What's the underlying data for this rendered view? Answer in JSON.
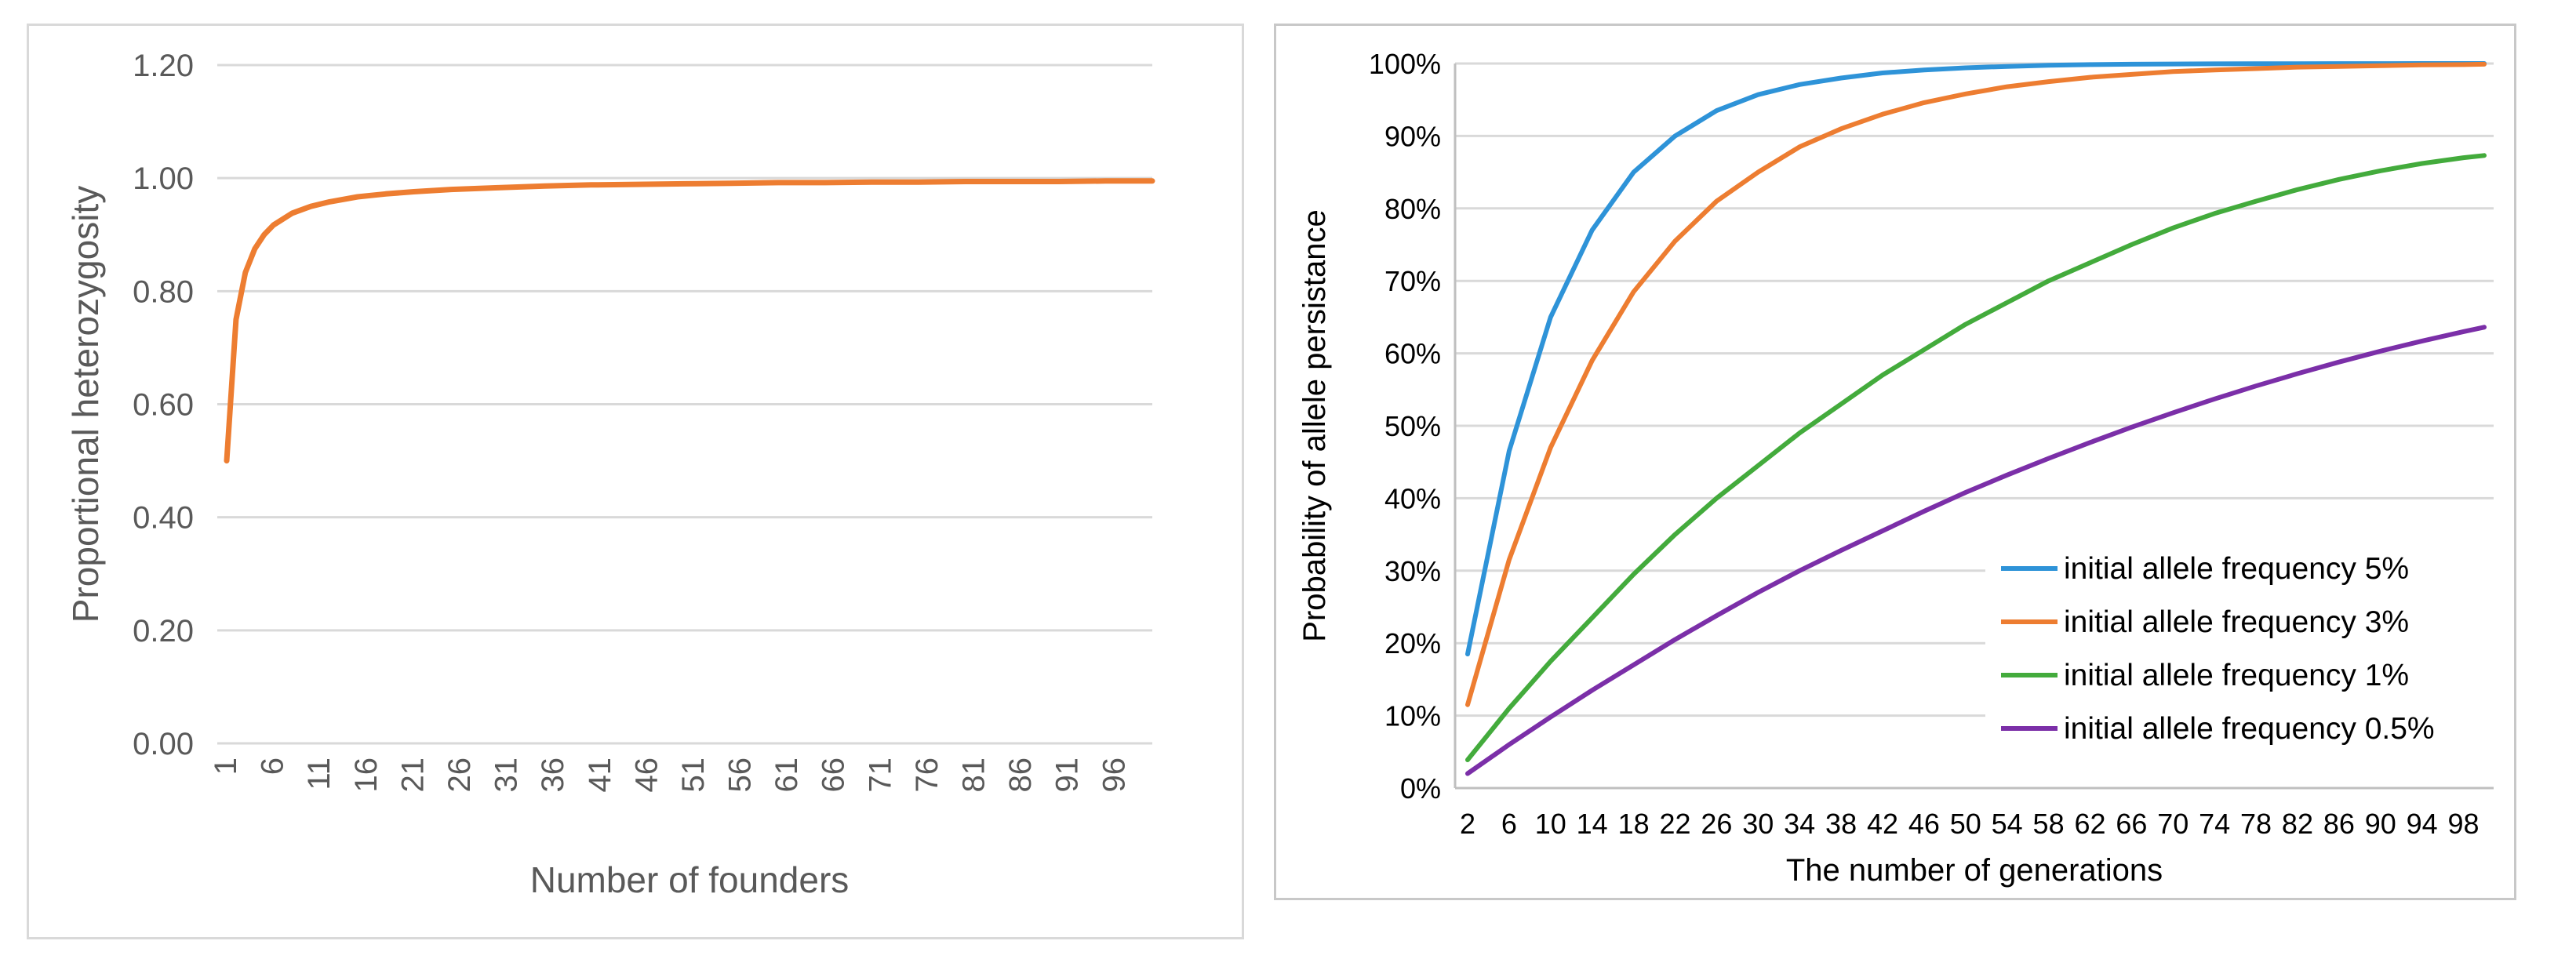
{
  "chart_data": [
    {
      "type": "line",
      "title": "",
      "xlabel": "Number of founders",
      "ylabel": "Proportional heterozygosity",
      "ylim": [
        0,
        1.2
      ],
      "yticks": [
        "0.00",
        "0.20",
        "0.40",
        "0.60",
        "0.80",
        "1.00",
        "1.20"
      ],
      "xtick_labels": [
        "1",
        "6",
        "11",
        "16",
        "21",
        "26",
        "31",
        "36",
        "41",
        "46",
        "51",
        "56",
        "61",
        "66",
        "71",
        "76",
        "81",
        "86",
        "91",
        "96"
      ],
      "x": [
        1,
        2,
        3,
        4,
        5,
        6,
        8,
        10,
        12,
        15,
        18,
        21,
        25,
        30,
        35,
        40,
        45,
        50,
        55,
        60,
        65,
        70,
        75,
        80,
        85,
        90,
        95,
        100
      ],
      "series": [
        {
          "color": "#ED7D31",
          "values": [
            0.5,
            0.75,
            0.833,
            0.875,
            0.9,
            0.917,
            0.938,
            0.95,
            0.958,
            0.967,
            0.972,
            0.976,
            0.98,
            0.983,
            0.986,
            0.988,
            0.989,
            0.99,
            0.991,
            0.992,
            0.992,
            0.993,
            0.993,
            0.994,
            0.994,
            0.994,
            0.995,
            0.995
          ]
        }
      ],
      "grid": true,
      "legend": "none"
    },
    {
      "type": "line",
      "title": "",
      "xlabel": "The number of generations",
      "ylabel": "Probability of allele persistance",
      "ylim": [
        0,
        100
      ],
      "yticks": [
        "0%",
        "10%",
        "20%",
        "30%",
        "40%",
        "50%",
        "60%",
        "70%",
        "80%",
        "90%",
        "100%"
      ],
      "xtick_labels": [
        "2",
        "6",
        "10",
        "14",
        "18",
        "22",
        "26",
        "30",
        "34",
        "38",
        "42",
        "46",
        "50",
        "54",
        "58",
        "62",
        "66",
        "70",
        "74",
        "78",
        "82",
        "86",
        "90",
        "94",
        "98"
      ],
      "x": [
        2,
        6,
        10,
        14,
        18,
        22,
        26,
        30,
        34,
        38,
        42,
        46,
        50,
        54,
        58,
        62,
        66,
        70,
        74,
        78,
        82,
        86,
        90,
        94,
        98,
        100
      ],
      "series": [
        {
          "name": "initial allele frequency 5%",
          "color": "#2E93D8",
          "values": [
            18.5,
            46.5,
            65.0,
            77.0,
            85.0,
            90.0,
            93.5,
            95.7,
            97.1,
            98.0,
            98.7,
            99.1,
            99.4,
            99.6,
            99.75,
            99.85,
            99.9,
            99.93,
            99.96,
            99.97,
            99.98,
            99.99,
            99.99,
            100,
            100,
            100
          ]
        },
        {
          "name": "initial allele frequency 3%",
          "color": "#ED7D31",
          "values": [
            11.5,
            31.5,
            47.0,
            59.0,
            68.5,
            75.5,
            81.0,
            85.0,
            88.5,
            91.0,
            93.0,
            94.6,
            95.8,
            96.8,
            97.5,
            98.1,
            98.5,
            98.9,
            99.1,
            99.3,
            99.5,
            99.6,
            99.7,
            99.8,
            99.85,
            99.9
          ]
        },
        {
          "name": "initial allele frequency 1%",
          "color": "#43AB3C",
          "values": [
            3.9,
            11.0,
            17.5,
            23.5,
            29.5,
            35.0,
            40.0,
            44.5,
            49.0,
            53.0,
            57.0,
            60.5,
            64.0,
            67.0,
            70.0,
            72.5,
            75.0,
            77.3,
            79.3,
            81.0,
            82.6,
            84.0,
            85.2,
            86.2,
            87.0,
            87.3
          ]
        },
        {
          "name": "initial allele frequency 0.5%",
          "color": "#7B2FA8",
          "values": [
            2.0,
            6.0,
            9.8,
            13.5,
            17.0,
            20.5,
            23.8,
            27.0,
            30.0,
            32.8,
            35.5,
            38.2,
            40.8,
            43.2,
            45.5,
            47.7,
            49.8,
            51.8,
            53.7,
            55.5,
            57.2,
            58.8,
            60.3,
            61.7,
            63.0,
            63.6
          ]
        }
      ],
      "grid": true,
      "legend": "bottom-right"
    }
  ]
}
